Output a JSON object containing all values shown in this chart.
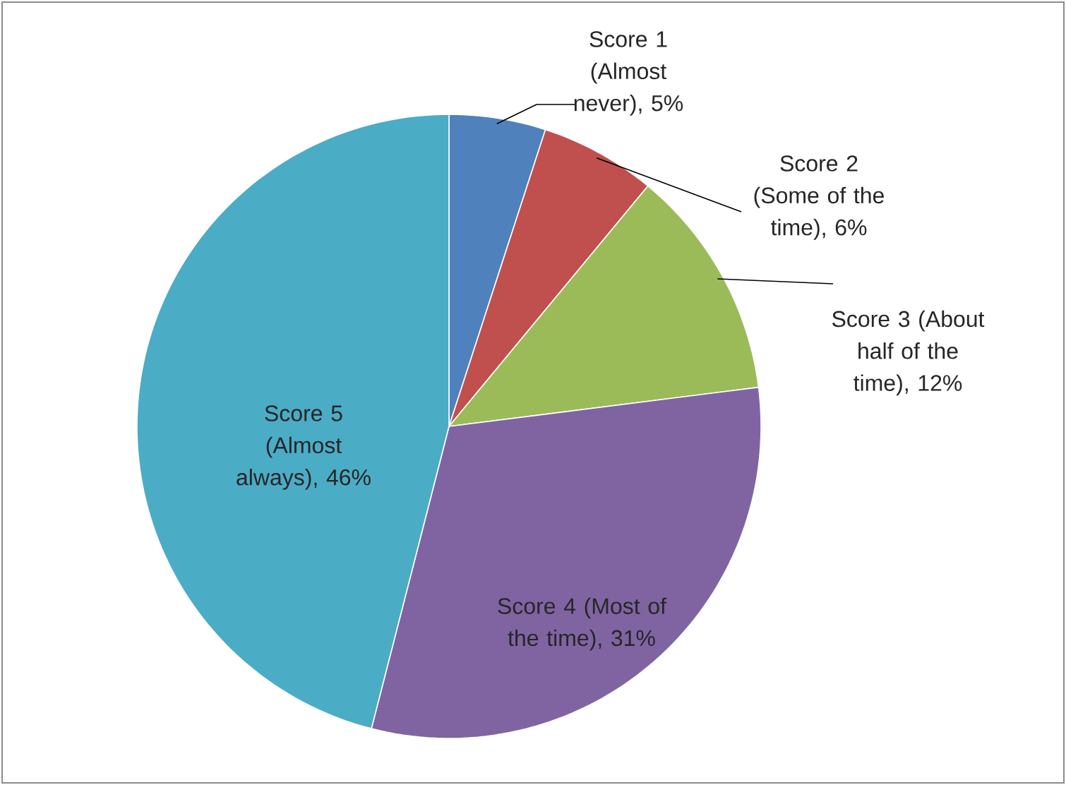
{
  "chart_data": {
    "type": "pie",
    "categories": [
      "Score 1 (Almost never), 5%",
      "Score 2 (Some of the time), 6%",
      "Score 3 (About half of the time), 12%",
      "Score 4 (Most of the time), 31%",
      "Score 5 (Almost always), 46%"
    ],
    "values": [
      5,
      6,
      12,
      31,
      46
    ],
    "colors": [
      "#4f81bd",
      "#c0504d",
      "#9bbb59",
      "#8064a2",
      "#4bacc6"
    ]
  }
}
